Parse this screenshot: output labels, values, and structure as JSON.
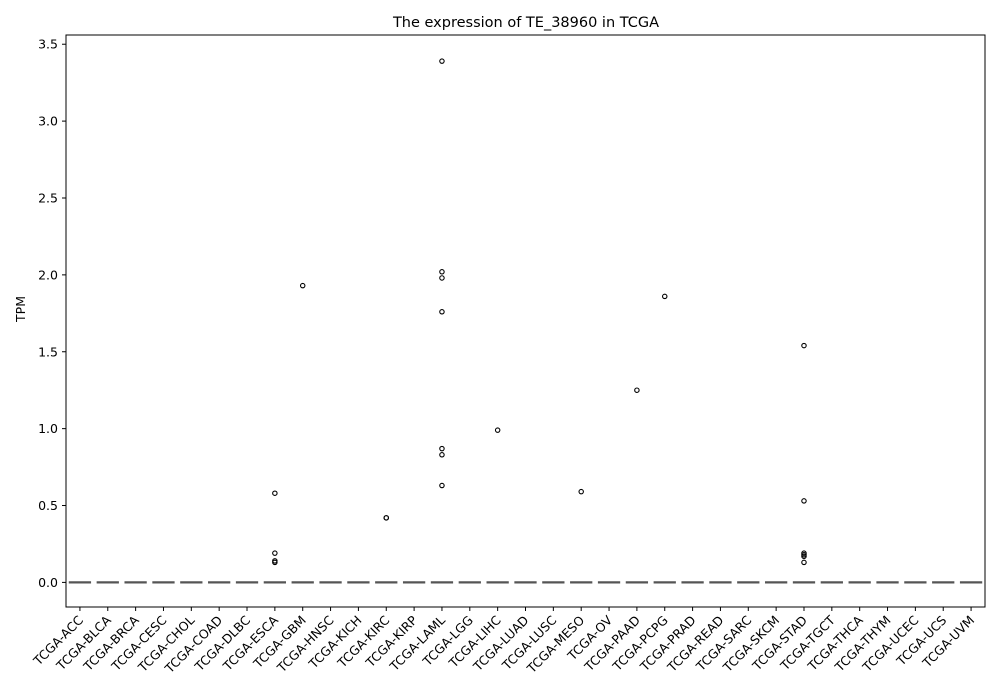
{
  "chart_data": {
    "type": "box",
    "title": "The expression of TE_38960 in TCGA",
    "xlabel": "",
    "ylabel": "TPM",
    "ylim": [
      -0.16,
      3.56
    ],
    "yticks": [
      "0.0",
      "0.5",
      "1.0",
      "1.5",
      "2.0",
      "2.5",
      "3.0",
      "3.5"
    ],
    "grid": false,
    "colors": {
      "box": "#555555",
      "outlier_edge": "#000000",
      "axes": "#000000"
    },
    "categories": [
      "TCGA-ACC",
      "TCGA-BLCA",
      "TCGA-BRCA",
      "TCGA-CESC",
      "TCGA-CHOL",
      "TCGA-COAD",
      "TCGA-DLBC",
      "TCGA-ESCA",
      "TCGA-GBM",
      "TCGA-HNSC",
      "TCGA-KICH",
      "TCGA-KIRC",
      "TCGA-KIRP",
      "TCGA-LAML",
      "TCGA-LGG",
      "TCGA-LIHC",
      "TCGA-LUAD",
      "TCGA-LUSC",
      "TCGA-MESO",
      "TCGA-OV",
      "TCGA-PAAD",
      "TCGA-PCPG",
      "TCGA-PRAD",
      "TCGA-READ",
      "TCGA-SARC",
      "TCGA-SKCM",
      "TCGA-STAD",
      "TCGA-TGCT",
      "TCGA-THCA",
      "TCGA-THYM",
      "TCGA-UCEC",
      "TCGA-UCS",
      "TCGA-UVM"
    ],
    "medians": [
      0,
      0,
      0,
      0,
      0,
      0,
      0,
      0,
      0,
      0,
      0,
      0,
      0,
      0,
      0,
      0,
      0,
      0,
      0,
      0,
      0,
      0,
      0,
      0,
      0,
      0,
      0,
      0,
      0,
      0,
      0,
      0,
      0
    ],
    "outliers": [
      {
        "category": "TCGA-ESCA",
        "values": [
          0.58,
          0.19,
          0.14,
          0.13
        ]
      },
      {
        "category": "TCGA-GBM",
        "values": [
          1.93
        ]
      },
      {
        "category": "TCGA-KIRC",
        "values": [
          0.42,
          0.42
        ]
      },
      {
        "category": "TCGA-LAML",
        "values": [
          3.39,
          2.02,
          1.98,
          1.76,
          0.87,
          0.83,
          0.63
        ]
      },
      {
        "category": "TCGA-LIHC",
        "values": [
          0.99
        ]
      },
      {
        "category": "TCGA-MESO",
        "values": [
          0.59
        ]
      },
      {
        "category": "TCGA-PAAD",
        "values": [
          1.25
        ]
      },
      {
        "category": "TCGA-PCPG",
        "values": [
          1.86
        ]
      },
      {
        "category": "TCGA-STAD",
        "values": [
          1.54,
          0.53,
          0.19,
          0.18,
          0.17,
          0.13
        ]
      }
    ]
  }
}
